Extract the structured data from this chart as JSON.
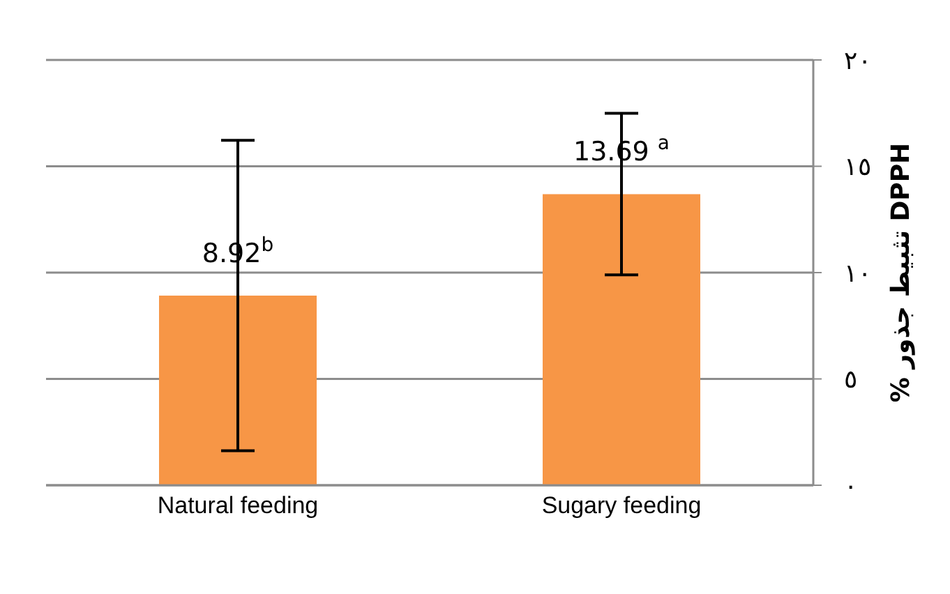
{
  "chart_data": {
    "type": "bar",
    "ylabel": "% تثبيط جذور DPPH",
    "categories": [
      "Natural feeding",
      "Sugary feeding"
    ],
    "values": [
      8.92,
      13.69
    ],
    "color": "#f79646",
    "errors": [
      7.3,
      3.8
    ],
    "value_labels": [
      "8.92$^{b}$",
      "13.69 $^{a}$"
    ],
    "ylim": [
      0,
      20
    ],
    "yticks": [
      {
        "value": 0,
        "label": "٠"
      },
      {
        "value": 5,
        "label": "٥"
      },
      {
        "value": 10,
        "label": "١٠"
      },
      {
        "value": 15,
        "label": "١٥"
      },
      {
        "value": 20,
        "label": "٢٠"
      }
    ],
    "grid": "y"
  }
}
